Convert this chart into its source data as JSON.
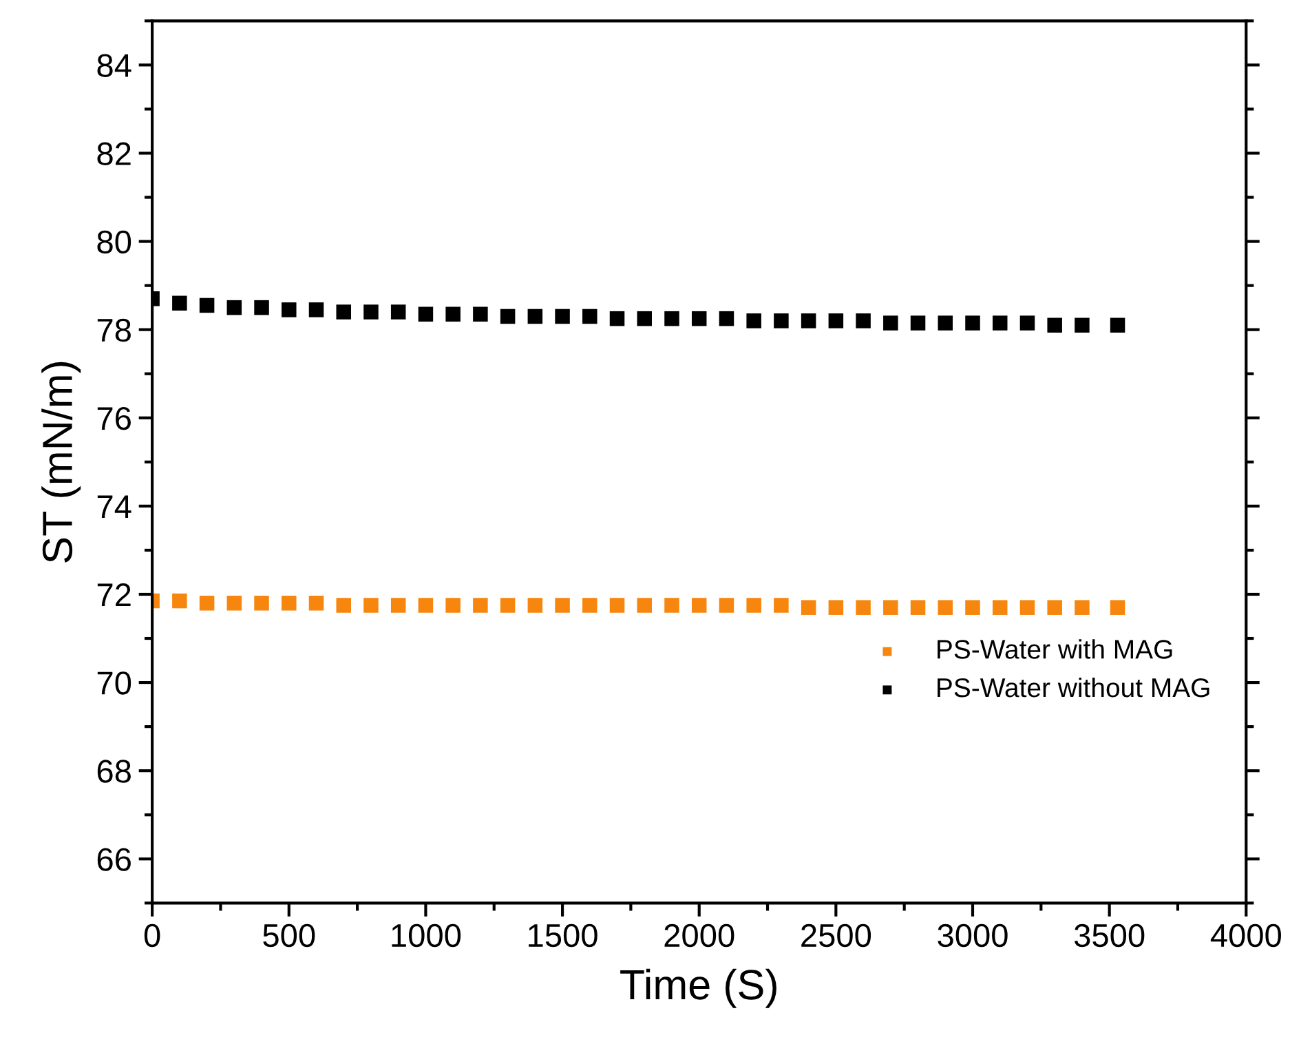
{
  "chart_data": {
    "type": "scatter",
    "xlabel": "Time (S)",
    "ylabel": "ST (mN/m)",
    "xlim": [
      0,
      4000
    ],
    "xticks": [
      0,
      500,
      1000,
      1500,
      2000,
      2500,
      3000,
      3500,
      4000
    ],
    "ylim": [
      65,
      85
    ],
    "yticks": [
      66,
      68,
      70,
      72,
      74,
      76,
      78,
      80,
      82,
      84
    ],
    "marker": "square",
    "legend": "bottom right",
    "grid": false,
    "series": [
      {
        "name": "PS-Water with MAG",
        "color": "#f7860f",
        "x": [
          0,
          100,
          200,
          300,
          400,
          500,
          600,
          700,
          800,
          900,
          1000,
          1100,
          1200,
          1300,
          1400,
          1500,
          1600,
          1700,
          1800,
          1900,
          2000,
          2100,
          2200,
          2300,
          2400,
          2500,
          2600,
          2700,
          2800,
          2900,
          3000,
          3100,
          3200,
          3300,
          3400,
          3530
        ],
        "values": [
          71.85,
          71.85,
          71.8,
          71.8,
          71.8,
          71.8,
          71.8,
          71.75,
          71.75,
          71.75,
          71.75,
          71.75,
          71.75,
          71.75,
          71.75,
          71.75,
          71.75,
          71.75,
          71.75,
          71.75,
          71.75,
          71.75,
          71.75,
          71.75,
          71.7,
          71.7,
          71.7,
          71.7,
          71.7,
          71.7,
          71.7,
          71.7,
          71.7,
          71.7,
          71.7,
          71.7
        ]
      },
      {
        "name": "PS-Water without MAG",
        "color": "#000000",
        "x": [
          0,
          100,
          200,
          300,
          400,
          500,
          600,
          700,
          800,
          900,
          1000,
          1100,
          1200,
          1300,
          1400,
          1500,
          1600,
          1700,
          1800,
          1900,
          2000,
          2100,
          2200,
          2300,
          2400,
          2500,
          2600,
          2700,
          2800,
          2900,
          3000,
          3100,
          3200,
          3300,
          3400,
          3530
        ],
        "values": [
          78.7,
          78.6,
          78.55,
          78.5,
          78.5,
          78.45,
          78.45,
          78.4,
          78.4,
          78.4,
          78.35,
          78.35,
          78.35,
          78.3,
          78.3,
          78.3,
          78.3,
          78.25,
          78.25,
          78.25,
          78.25,
          78.25,
          78.2,
          78.2,
          78.2,
          78.2,
          78.2,
          78.15,
          78.15,
          78.15,
          78.15,
          78.15,
          78.15,
          78.1,
          78.1,
          78.1
        ]
      }
    ]
  }
}
